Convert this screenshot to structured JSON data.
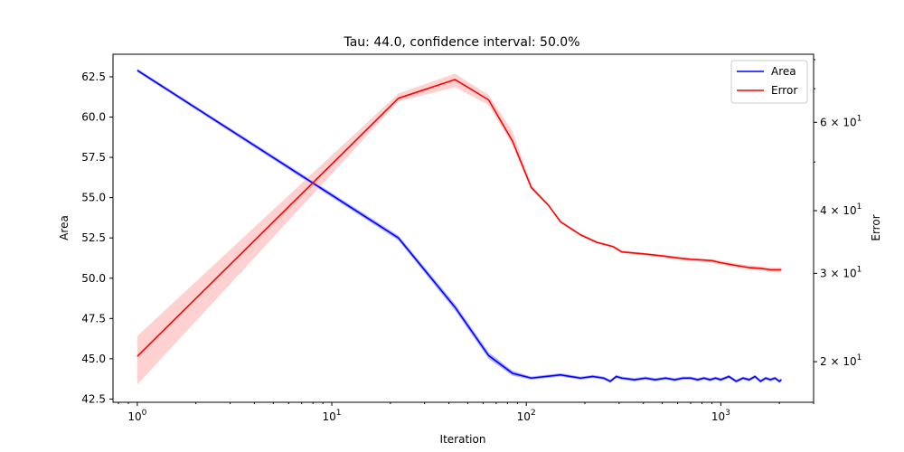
{
  "chart_data": {
    "type": "line",
    "title": "Tau: 44.0, confidence interval: 50.0%",
    "xlabel": "Iteration",
    "ylabel_left": "Area",
    "ylabel_right": "Error",
    "xscale": "log",
    "xlim": [
      0.75,
      3000
    ],
    "ylim_left": [
      42.3,
      63.9
    ],
    "ylim_right": [
      16.6,
      82.0
    ],
    "yscale_right": "log",
    "x_tick_labels": [
      "10^0",
      "10^1",
      "10^2",
      "10^3"
    ],
    "x_tick_values": [
      1,
      10,
      100,
      1000
    ],
    "y_left_ticks": [
      42.5,
      45.0,
      47.5,
      50.0,
      52.5,
      55.0,
      57.5,
      60.0,
      62.5
    ],
    "y_left_tick_labels": [
      "42.5",
      "45.0",
      "47.5",
      "50.0",
      "52.5",
      "55.0",
      "57.5",
      "60.0",
      "62.5"
    ],
    "y_right_ticks": [
      20,
      30,
      40,
      60
    ],
    "y_right_tick_labels": [
      "2 × 10^1",
      "3 × 10^1",
      "4 × 10^1",
      "6 × 10^1"
    ],
    "legend_position": "top-right",
    "grid": false,
    "series": [
      {
        "name": "Area",
        "axis": "left",
        "color": "#0000ff",
        "band_color": "#8080ff",
        "x": [
          1,
          22,
          43,
          64,
          85,
          106,
          150,
          190,
          220,
          250,
          270,
          290,
          310,
          360,
          410,
          460,
          520,
          580,
          640,
          700,
          760,
          820,
          880,
          940,
          1000,
          1100,
          1200,
          1300,
          1400,
          1500,
          1600,
          1700,
          1800,
          1900,
          2000,
          2050
        ],
        "y": [
          62.9,
          52.5,
          48.2,
          45.2,
          44.1,
          43.8,
          44.0,
          43.8,
          43.9,
          43.8,
          43.6,
          43.9,
          43.8,
          43.7,
          43.8,
          43.7,
          43.8,
          43.7,
          43.8,
          43.8,
          43.7,
          43.8,
          43.7,
          43.8,
          43.7,
          43.9,
          43.6,
          43.8,
          43.7,
          43.9,
          43.6,
          43.8,
          43.7,
          43.8,
          43.6,
          43.7
        ],
        "band": [
          0.1,
          0.15,
          0.2,
          0.2,
          0.15,
          0.1,
          0.1,
          0.1,
          0.1,
          0.1,
          0.1,
          0.1,
          0.1,
          0.1,
          0.1,
          0.1,
          0.1,
          0.1,
          0.1,
          0.1,
          0.1,
          0.1,
          0.1,
          0.1,
          0.1,
          0.1,
          0.1,
          0.1,
          0.1,
          0.1,
          0.1,
          0.1,
          0.1,
          0.1,
          0.1,
          0.1
        ]
      },
      {
        "name": "Error",
        "axis": "right",
        "color": "#ff0000",
        "band_color": "#ffb3b3",
        "x": [
          1,
          22,
          43,
          64,
          85,
          106,
          130,
          150,
          190,
          230,
          280,
          310,
          400,
          500,
          600,
          700,
          800,
          900,
          1000,
          1200,
          1400,
          1600,
          1800,
          2050
        ],
        "y": [
          20.5,
          67.0,
          73.0,
          66.5,
          55.0,
          44.5,
          41.0,
          38.0,
          35.8,
          34.6,
          33.9,
          33.1,
          32.8,
          32.5,
          32.2,
          32.0,
          31.9,
          31.8,
          31.5,
          31.1,
          30.8,
          30.7,
          30.5,
          30.5
        ],
        "band_low": [
          18.0,
          66.0,
          70.5,
          65.0,
          54.0,
          44.0,
          40.8,
          37.8,
          35.6,
          34.4,
          33.7,
          32.9,
          32.6,
          32.2,
          31.9,
          31.7,
          31.6,
          31.5,
          31.2,
          30.8,
          30.5,
          30.4,
          30.2,
          30.1
        ],
        "band_high": [
          22.5,
          68.5,
          75.0,
          68.0,
          57.5,
          45.0,
          41.2,
          38.2,
          36.0,
          34.8,
          34.1,
          33.3,
          33.0,
          32.7,
          32.4,
          32.2,
          32.1,
          32.0,
          31.8,
          31.4,
          31.1,
          31.0,
          30.8,
          30.8
        ]
      }
    ]
  }
}
